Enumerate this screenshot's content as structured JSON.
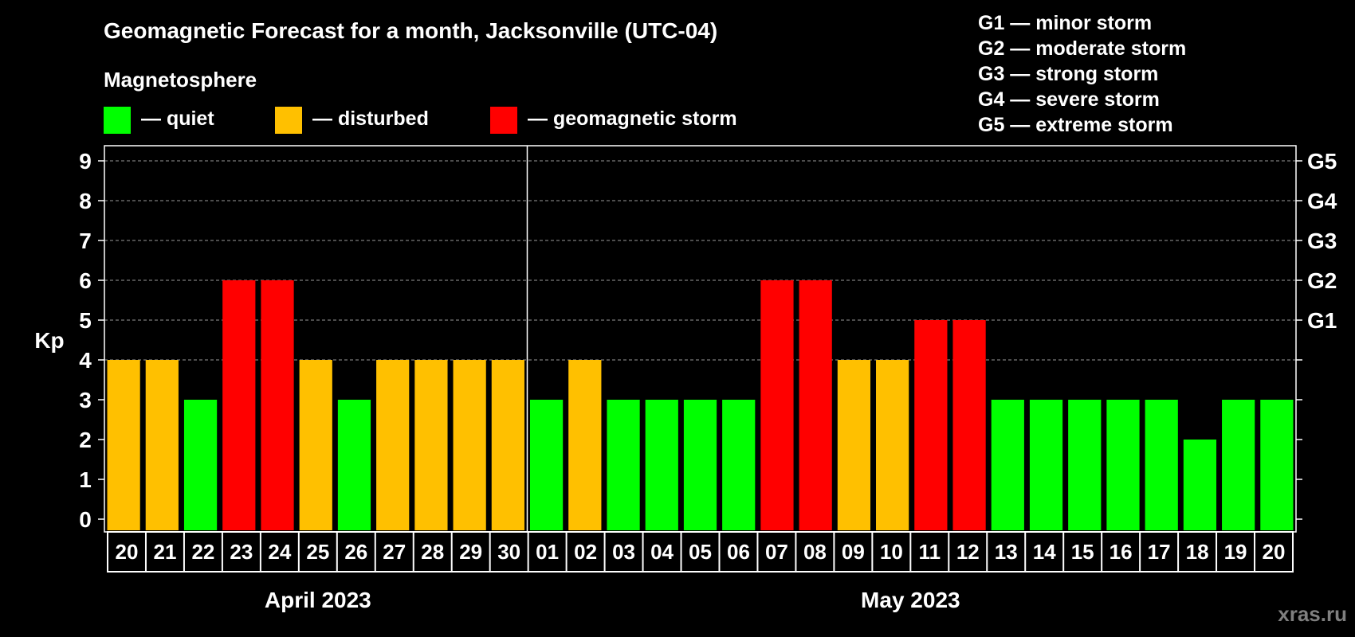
{
  "chart_data": {
    "type": "bar",
    "title": "Geomagnetic Forecast for a month, Jacksonville (UTC-04)",
    "legend": {
      "heading": "Magnetosphere",
      "items": [
        {
          "label": "— quiet",
          "color": "#00ff00"
        },
        {
          "label": "— disturbed",
          "color": "#ffc000"
        },
        {
          "label": "— geomagnetic storm",
          "color": "#ff0000"
        }
      ]
    },
    "storm_scale": [
      {
        "level": "G1",
        "text": "G1 — minor storm",
        "kp": 5
      },
      {
        "level": "G2",
        "text": "G2 — moderate storm",
        "kp": 6
      },
      {
        "level": "G3",
        "text": "G3 — strong storm",
        "kp": 7
      },
      {
        "level": "G4",
        "text": "G4 — severe storm",
        "kp": 8
      },
      {
        "level": "G5",
        "text": "G5 — extreme storm",
        "kp": 9
      }
    ],
    "ylabel": "Kp",
    "ylim": [
      0,
      9
    ],
    "yticks": [
      0,
      1,
      2,
      3,
      4,
      5,
      6,
      7,
      8,
      9
    ],
    "grid": true,
    "categories": [
      "20",
      "21",
      "22",
      "23",
      "24",
      "25",
      "26",
      "27",
      "28",
      "29",
      "30",
      "01",
      "02",
      "03",
      "04",
      "05",
      "06",
      "07",
      "08",
      "09",
      "10",
      "11",
      "12",
      "13",
      "14",
      "15",
      "16",
      "17",
      "18",
      "19",
      "20"
    ],
    "values": [
      4,
      4,
      3,
      6,
      6,
      4,
      3,
      4,
      4,
      4,
      4,
      3,
      4,
      3,
      3,
      3,
      3,
      6,
      6,
      4,
      4,
      5,
      5,
      3,
      3,
      3,
      3,
      3,
      2,
      3,
      3
    ],
    "color_by_level": {
      "quiet": "#00ff00",
      "disturbed": "#ffc000",
      "storm": "#ff0000"
    },
    "months": [
      {
        "label": "April 2023",
        "count": 11
      },
      {
        "label": "May 2023",
        "count": 20
      }
    ]
  },
  "watermark": "xras.ru"
}
